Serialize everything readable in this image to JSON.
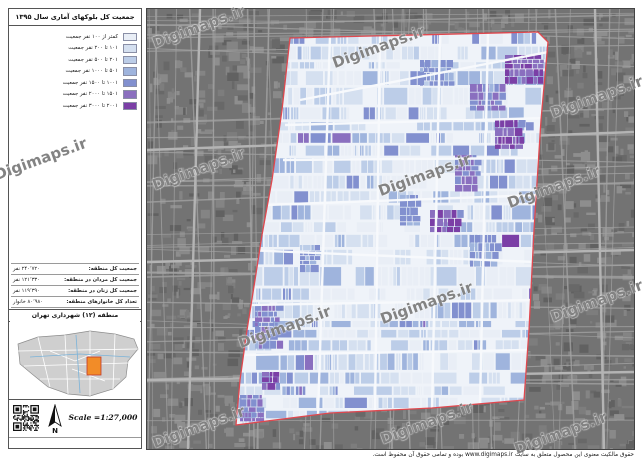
{
  "title": "جمعیت کل بلوکهای آماری سال ۱۳۹۵",
  "legend": [
    {
      "label": "کمتر از ۱۰۰ نفر جمعیت",
      "color": "#e9eef6"
    },
    {
      "label": "۱۰۱ تا ۲۰۰ نفر جمعیت",
      "color": "#d5e0f0"
    },
    {
      "label": "۲۰۱ تا ۵۰۰ نفر جمعیت",
      "color": "#bccde8"
    },
    {
      "label": "۵۰۱ تا ۱۰۰۰ نفر جمعیت",
      "color": "#9fb4dd"
    },
    {
      "label": "۱۰۰۱ تا ۱۵۰۰ نفر جمعیت",
      "color": "#8290cf"
    },
    {
      "label": "۱۵۰۱ تا ۲۰۰۰ نفر جمعیت",
      "color": "#8a6fbf"
    },
    {
      "label": "۲۰۰۱ تا ۳۰۰۰ نفر جمعیت",
      "color": "#7b3fa6"
    }
  ],
  "stats": [
    {
      "label": "جمعیت کل منطقه:",
      "value": "۲۴۰٬۷۲۰ نفر"
    },
    {
      "label": "جمعیت کل مردان در منطقه:",
      "value": "۱۲۱٬۳۳۰ نفر"
    },
    {
      "label": "جمعیت کل زنان در منطقه:",
      "value": "۱۱۹٬۳۹۰ نفر"
    },
    {
      "label": "تعداد کل خانوارهای منطقه:",
      "value": "۸۰٬۹۸۰ خانوار"
    }
  ],
  "region_title": "منطقه (۱۲) شهرداری تهران",
  "north_label": "N",
  "scale": "Scale =1:27,000",
  "footer": "حقوق مالکیت معنوی این محصول متعلق به سایت www.digimaps.ir بوده و تمامی حقوق آن محفوظ است.",
  "watermark": "Digimaps.ir",
  "colors": {
    "region_border": "#e0484f",
    "region_base": "#eff3f9",
    "city_background": "#737373",
    "inset_highlight": "#f28c28",
    "inset_city": "#cfcfcf"
  },
  "icons": {
    "north": "north-arrow-icon",
    "qr": "qr-code"
  }
}
